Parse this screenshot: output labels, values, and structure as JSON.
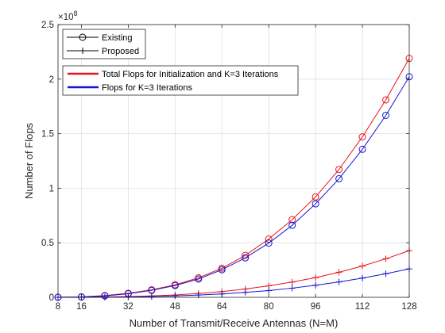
{
  "chart_data": {
    "type": "line",
    "title": "",
    "xlabel": "Number of Transmit/Receive Antennas (N=M)",
    "ylabel": "Number of  Flops",
    "y_exponent_label": "×10",
    "y_exponent_power": "8",
    "y_multiplier": 100000000,
    "xlim": [
      8,
      128
    ],
    "ylim": [
      0,
      2.5
    ],
    "grid": true,
    "x_ticks": [
      8,
      16,
      32,
      48,
      64,
      80,
      96,
      112,
      128
    ],
    "x_tick_labels": [
      "8",
      "16",
      "32",
      "48",
      "64",
      "80",
      "96",
      "112",
      "128"
    ],
    "y_ticks": [
      0,
      0.5,
      1,
      1.5,
      2,
      2.5
    ],
    "y_tick_labels": [
      "0",
      "0.5",
      "1",
      "1.5",
      "2",
      "2.5"
    ],
    "x": [
      8,
      16,
      24,
      32,
      40,
      48,
      56,
      64,
      72,
      80,
      88,
      96,
      104,
      112,
      120,
      128
    ],
    "series": [
      {
        "name": "Existing",
        "group": "Total Flops for Initialization and K=3 Iterations",
        "color": "#e8141a",
        "marker": "circle",
        "values": [
          0.0007,
          0.004,
          0.016,
          0.037,
          0.069,
          0.115,
          0.179,
          0.267,
          0.385,
          0.534,
          0.712,
          0.92,
          1.172,
          1.471,
          1.81,
          2.19
        ]
      },
      {
        "name": "Proposed",
        "group": "Total Flops for Initialization and K=3 Iterations",
        "color": "#e8141a",
        "marker": "plus",
        "values": [
          0.0003,
          0.001,
          0.003,
          0.007,
          0.013,
          0.022,
          0.035,
          0.053,
          0.076,
          0.105,
          0.14,
          0.181,
          0.23,
          0.287,
          0.353,
          0.428
        ]
      },
      {
        "name": "Existing",
        "group": "Flops for K=3 Iterations",
        "color": "#1414d2",
        "marker": "circle",
        "values": [
          0.0005,
          0.003,
          0.013,
          0.033,
          0.064,
          0.108,
          0.168,
          0.253,
          0.362,
          0.497,
          0.66,
          0.857,
          1.087,
          1.357,
          1.668,
          2.022
        ]
      },
      {
        "name": "Proposed",
        "group": "Flops for K=3 Iterations",
        "color": "#1414d2",
        "marker": "plus",
        "values": [
          0.0001,
          0.0005,
          0.0015,
          0.004,
          0.008,
          0.013,
          0.021,
          0.031,
          0.045,
          0.062,
          0.084,
          0.111,
          0.141,
          0.176,
          0.216,
          0.261
        ]
      }
    ],
    "legend_markers": {
      "placement": "top-left",
      "entries": [
        {
          "label": "Existing",
          "marker": "circle",
          "color": "#000000"
        },
        {
          "label": "Proposed",
          "marker": "plus",
          "color": "#000000"
        }
      ]
    },
    "legend_colors": {
      "placement": "top-left",
      "entries": [
        {
          "label": "Total Flops for Initialization and K=3 Iterations",
          "color": "#e8141a"
        },
        {
          "label": "Flops for K=3 Iterations",
          "color": "#1414d2"
        }
      ]
    }
  }
}
